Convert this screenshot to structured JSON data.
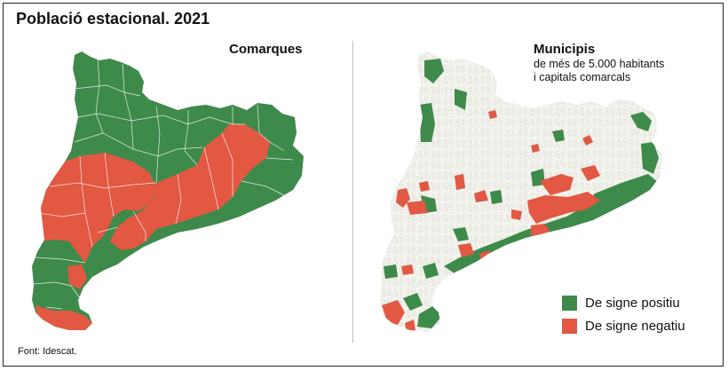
{
  "title": "Població estacional. 2021",
  "left_panel": {
    "title": "Comarques"
  },
  "right_panel": {
    "title": "Municipis",
    "subtitle_line1": "de més de 5.000 habitants",
    "subtitle_line2": "i capitals comarcals"
  },
  "legend": {
    "positive": {
      "label": "De signe positiu",
      "color": "#3e8a4a"
    },
    "negative": {
      "label": "De signe negatiu",
      "color": "#e25843"
    }
  },
  "base_color": "#ebebe4",
  "source": "Font: Idescat."
}
